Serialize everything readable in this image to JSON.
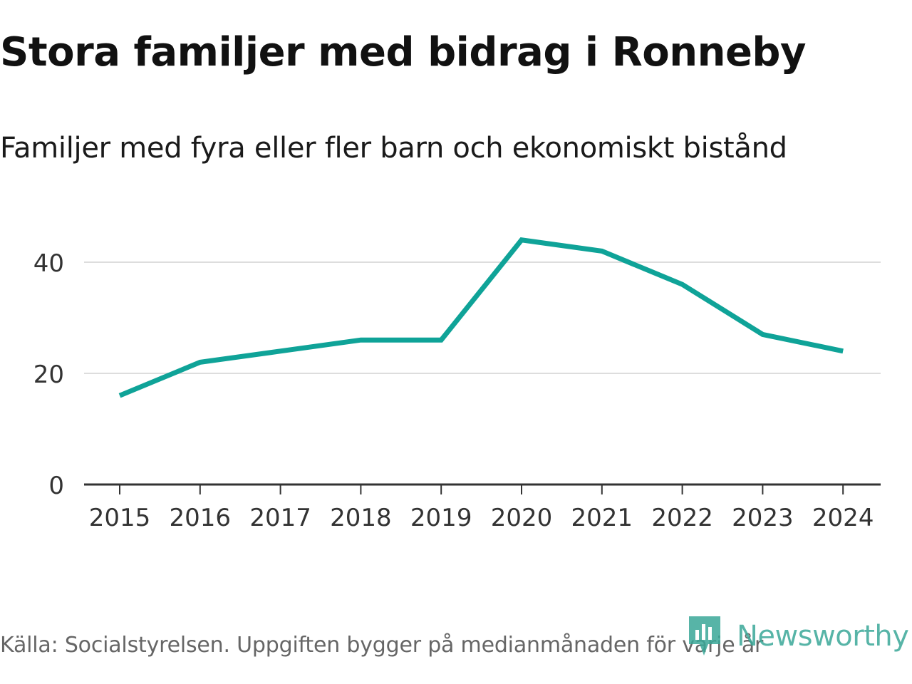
{
  "header": {
    "title": "Stora familjer med bidrag i Ronneby",
    "subtitle": "Familjer med fyra eller fler barn och ekonomiskt bistånd"
  },
  "footer": {
    "source": "Källa: Socialstyrelsen. Uppgiften bygger på medianmånaden för varje år",
    "logo_text": "Newsworthy"
  },
  "colors": {
    "line": "#0fa398",
    "grid": "#dddddd",
    "axis": "#333333",
    "logo": "#3aa898"
  },
  "chart_data": {
    "type": "line",
    "title": "Stora familjer med bidrag i Ronneby",
    "subtitle": "Familjer med fyra eller fler barn och ekonomiskt bistånd",
    "xlabel": "",
    "ylabel": "",
    "categories": [
      "2015",
      "2016",
      "2017",
      "2018",
      "2019",
      "2020",
      "2021",
      "2022",
      "2023",
      "2024"
    ],
    "series": [
      {
        "name": "Familjer med fyra eller fler barn och ekonomiskt bistånd",
        "values": [
          16,
          22,
          24,
          26,
          26,
          44,
          42,
          36,
          27,
          24
        ]
      }
    ],
    "ylim": [
      0,
      50
    ],
    "yticks": [
      0,
      20,
      40
    ],
    "ytick_labels": [
      "0",
      "20",
      "40"
    ],
    "grid": true,
    "legend": "none"
  }
}
